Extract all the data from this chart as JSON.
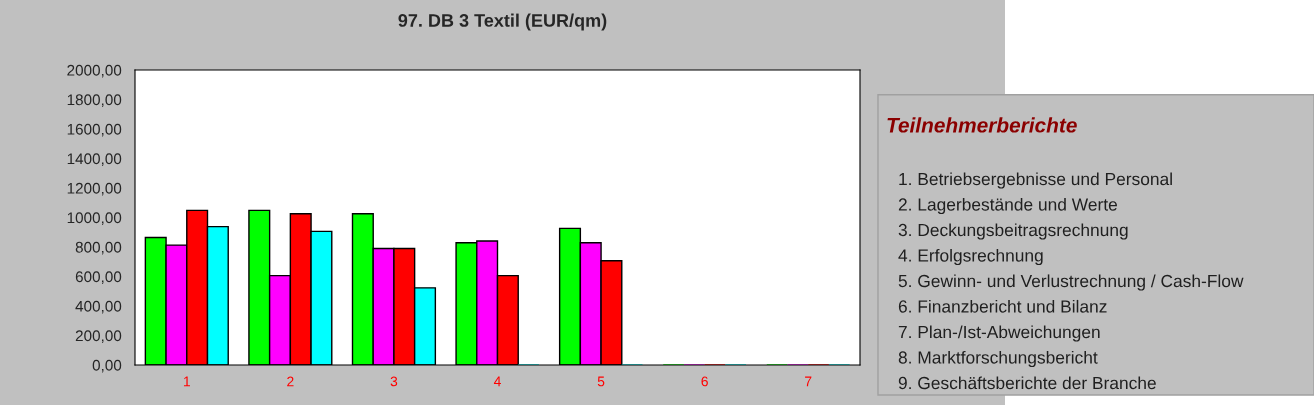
{
  "chart_data": {
    "type": "bar",
    "title": "97. DB 3 Textil (EUR/qm)",
    "categories": [
      "1",
      "2",
      "3",
      "4",
      "5",
      "6",
      "7"
    ],
    "series": [
      {
        "color": "#00ff00",
        "values": [
          864,
          1048,
          1025,
          829,
          926,
          0,
          0
        ]
      },
      {
        "color": "#ff00ff",
        "values": [
          813,
          606,
          790,
          841,
          829,
          0,
          0
        ]
      },
      {
        "color": "#ff0000",
        "values": [
          1048,
          1025,
          790,
          606,
          707,
          0,
          0
        ]
      },
      {
        "color": "#00ffff",
        "values": [
          938,
          906,
          523,
          0,
          0,
          0,
          0
        ]
      }
    ],
    "ylim": [
      0,
      2000
    ],
    "yticks": [
      {
        "value": 0,
        "label": "0,00"
      },
      {
        "value": 200,
        "label": "200,00"
      },
      {
        "value": 400,
        "label": "400,00"
      },
      {
        "value": 600,
        "label": "600,00"
      },
      {
        "value": 800,
        "label": "800,00"
      },
      {
        "value": 1000,
        "label": "1000,00"
      },
      {
        "value": 1200,
        "label": "1200,00"
      },
      {
        "value": 1400,
        "label": "1400,00"
      },
      {
        "value": 1600,
        "label": "1600,00"
      },
      {
        "value": 1800,
        "label": "1800,00"
      },
      {
        "value": 2000,
        "label": "2000,00"
      }
    ],
    "annotations": [
      "Teilnehmerberichte",
      "1. Betriebsergebnisse und Personal",
      "2. Lagerbestände und Werte",
      "3. Deckungsbeitragsrechnung",
      "4. Erfolgsrechnung",
      "5. Gewinn- und Verlustrechnung / Cash-Flow",
      "6. Finanzbericht und Bilanz",
      "7. Plan-/Ist-Abweichungen",
      "8. Marktforschungsbericht",
      "9. Geschäftsberichte der Branche"
    ]
  }
}
